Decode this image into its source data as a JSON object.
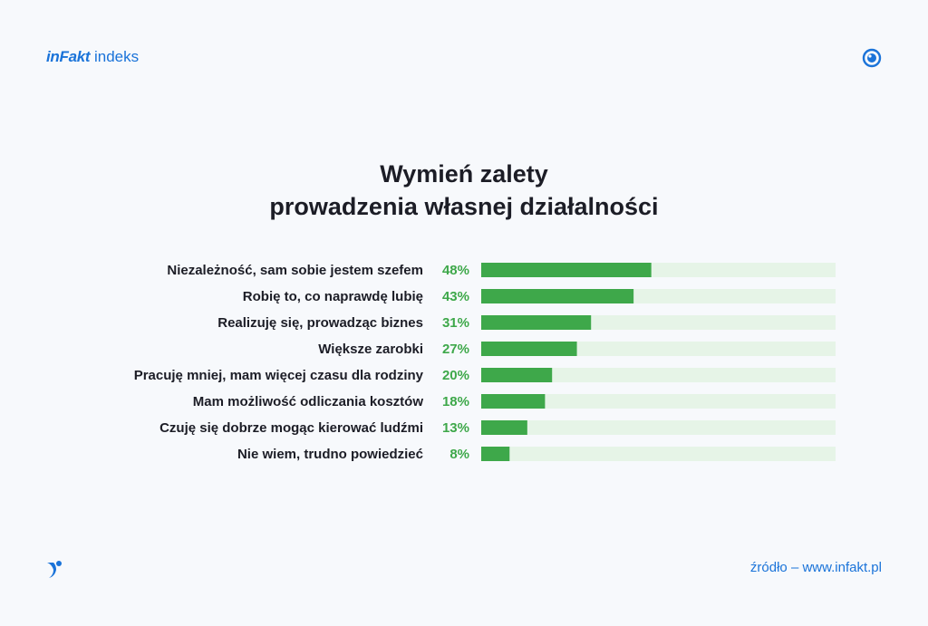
{
  "logo": {
    "brand": "inFakt",
    "suffix": "indeks"
  },
  "icons": {
    "top_right": "eye-icon",
    "bottom_left": "bird-icon"
  },
  "colors": {
    "accent": "#1a73d9",
    "bar": "#3ea84a",
    "track": "#e6f4e7",
    "value_text": "#3ea84a",
    "label_text": "#1c1d26"
  },
  "footer": {
    "source": "źródło – www.infakt.pl"
  },
  "chart_data": {
    "type": "bar",
    "orientation": "horizontal",
    "title_lines": [
      "Wymień zalety",
      "prowadzenia własnej działalności"
    ],
    "categories": [
      "Niezależność, sam sobie jestem szefem",
      "Robię to, co naprawdę lubię",
      "Realizuję się, prowadząc biznes",
      "Większe zarobki",
      "Pracuję mniej, mam więcej czasu dla rodziny",
      "Mam możliwość odliczania kosztów",
      "Czuję się dobrze mogąc kierować ludźmi",
      "Nie wiem, trudno powiedzieć"
    ],
    "values": [
      48,
      43,
      31,
      27,
      20,
      18,
      13,
      8
    ],
    "value_labels": [
      "48%",
      "43%",
      "31%",
      "27%",
      "20%",
      "18%",
      "13%",
      "8%"
    ],
    "xlim": [
      0,
      100
    ],
    "grid": false,
    "legend": "none"
  }
}
